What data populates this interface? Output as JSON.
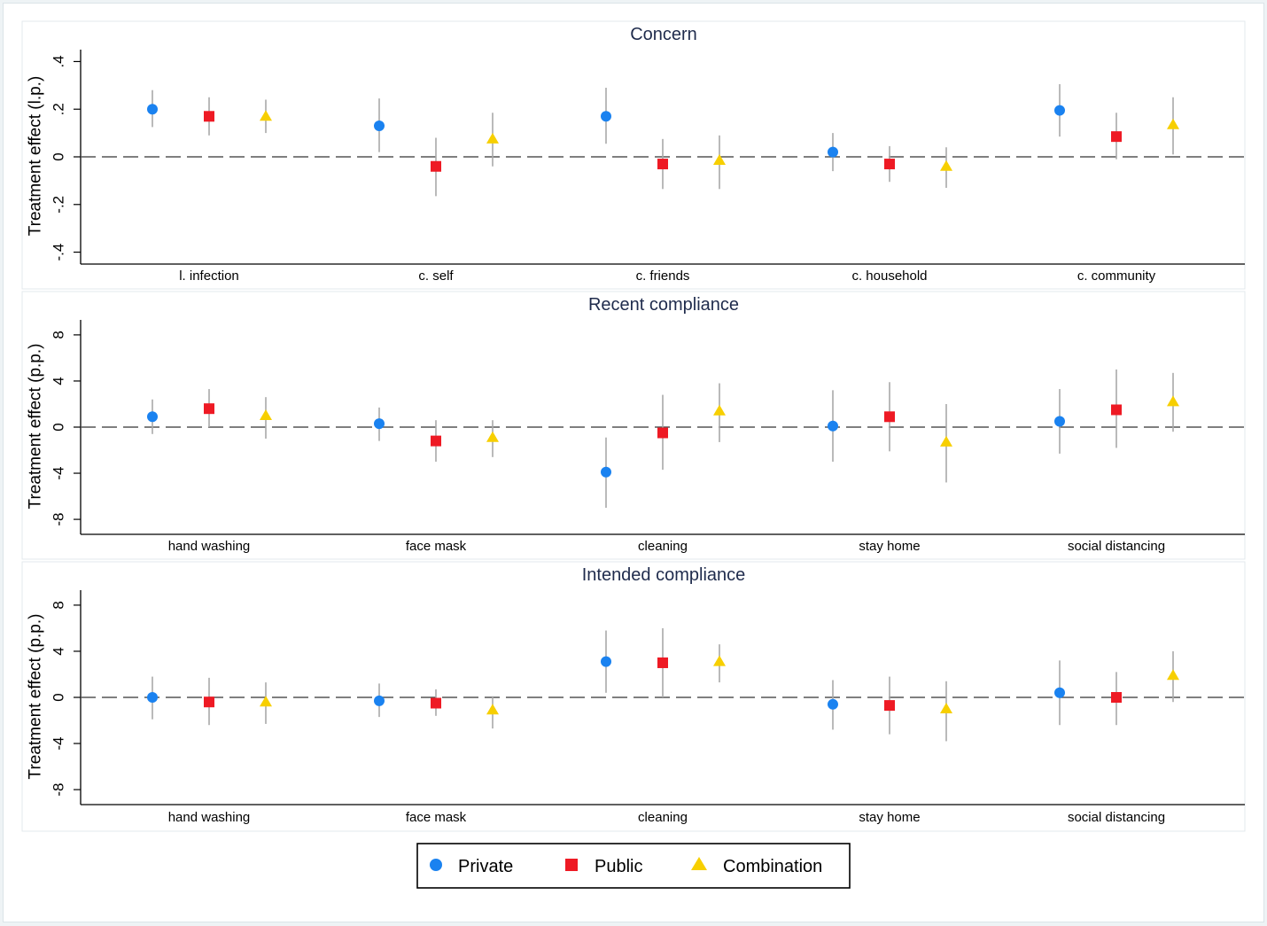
{
  "colors": {
    "Private": "#1a82f0",
    "Public": "#ee1a24",
    "Combination": "#f7cf00",
    "ci": "#a8a8a8",
    "zero_line": "#555555"
  },
  "legend": [
    "Private",
    "Public",
    "Combination"
  ],
  "chart_data": [
    {
      "type": "scatter",
      "title": "Concern",
      "ylabel": "Treatment effect (l.p.)",
      "ylim": [
        -0.45,
        0.45
      ],
      "yticks": [
        0.4,
        0.2,
        0,
        -0.2,
        -0.4
      ],
      "ytick_labels": [
        ".4",
        ".2",
        "0",
        "-.2",
        "-.4"
      ],
      "categories": [
        "l. infection",
        "c. self",
        "c. friends",
        "c. household",
        "c. community"
      ],
      "series": [
        {
          "name": "Private",
          "marker": "circle",
          "values": [
            0.2,
            0.13,
            0.17,
            0.02,
            0.195
          ],
          "ci_low": [
            0.125,
            0.02,
            0.055,
            -0.06,
            0.085
          ],
          "ci_high": [
            0.28,
            0.245,
            0.29,
            0.1,
            0.305
          ]
        },
        {
          "name": "Public",
          "marker": "square",
          "values": [
            0.17,
            -0.04,
            -0.03,
            -0.03,
            0.085
          ],
          "ci_low": [
            0.09,
            -0.165,
            -0.135,
            -0.105,
            -0.01
          ],
          "ci_high": [
            0.25,
            0.08,
            0.075,
            0.045,
            0.185
          ]
        },
        {
          "name": "Combination",
          "marker": "triangle",
          "values": [
            0.17,
            0.075,
            -0.015,
            -0.04,
            0.135
          ],
          "ci_low": [
            0.1,
            -0.04,
            -0.135,
            -0.13,
            0.01
          ],
          "ci_high": [
            0.24,
            0.185,
            0.09,
            0.04,
            0.25
          ]
        }
      ]
    },
    {
      "type": "scatter",
      "title": "Recent compliance",
      "ylabel": "Treatment effect (p.p.)",
      "ylim": [
        -9.3,
        9.3
      ],
      "yticks": [
        8,
        4,
        0,
        -4,
        -8
      ],
      "ytick_labels": [
        "8",
        "4",
        "0",
        "-4",
        "-8"
      ],
      "categories": [
        "hand washing",
        "face mask",
        "cleaning",
        "stay home",
        "social distancing"
      ],
      "series": [
        {
          "name": "Private",
          "marker": "circle",
          "values": [
            0.9,
            0.3,
            -3.9,
            0.1,
            0.5
          ],
          "ci_low": [
            -0.6,
            -1.2,
            -7.0,
            -3.0,
            -2.3
          ],
          "ci_high": [
            2.4,
            1.7,
            -0.9,
            3.2,
            3.3
          ]
        },
        {
          "name": "Public",
          "marker": "square",
          "values": [
            1.6,
            -1.2,
            -0.5,
            0.9,
            1.5
          ],
          "ci_low": [
            0.0,
            -3.0,
            -3.7,
            -2.1,
            -1.8
          ],
          "ci_high": [
            3.3,
            0.6,
            2.8,
            3.9,
            5.0
          ]
        },
        {
          "name": "Combination",
          "marker": "triangle",
          "values": [
            1.0,
            -0.9,
            1.4,
            -1.3,
            2.2
          ],
          "ci_low": [
            -1.0,
            -2.6,
            -1.3,
            -4.8,
            -0.4
          ],
          "ci_high": [
            2.6,
            0.6,
            3.8,
            2.0,
            4.7
          ]
        }
      ]
    },
    {
      "type": "scatter",
      "title": "Intended compliance",
      "ylabel": "Treatment effect (p.p.)",
      "ylim": [
        -9.3,
        9.3
      ],
      "yticks": [
        8,
        4,
        0,
        -4,
        -8
      ],
      "ytick_labels": [
        "8",
        "4",
        "0",
        "-4",
        "-8"
      ],
      "categories": [
        "hand washing",
        "face mask",
        "cleaning",
        "stay home",
        "social distancing"
      ],
      "series": [
        {
          "name": "Private",
          "marker": "circle",
          "values": [
            0.0,
            -0.3,
            3.1,
            -0.6,
            0.4
          ],
          "ci_low": [
            -1.9,
            -1.7,
            0.4,
            -2.8,
            -2.4
          ],
          "ci_high": [
            1.8,
            1.2,
            5.8,
            1.5,
            3.2
          ]
        },
        {
          "name": "Public",
          "marker": "square",
          "values": [
            -0.4,
            -0.5,
            3.0,
            -0.7,
            0.0
          ],
          "ci_low": [
            -2.4,
            -1.6,
            0.0,
            -3.2,
            -2.4
          ],
          "ci_high": [
            1.7,
            0.7,
            6.0,
            1.8,
            2.2
          ]
        },
        {
          "name": "Combination",
          "marker": "triangle",
          "values": [
            -0.4,
            -1.1,
            3.1,
            -1.0,
            1.9
          ],
          "ci_low": [
            -2.3,
            -2.7,
            1.3,
            -3.8,
            -0.4
          ],
          "ci_high": [
            1.3,
            0.1,
            4.6,
            1.4,
            4.0
          ]
        }
      ]
    }
  ]
}
